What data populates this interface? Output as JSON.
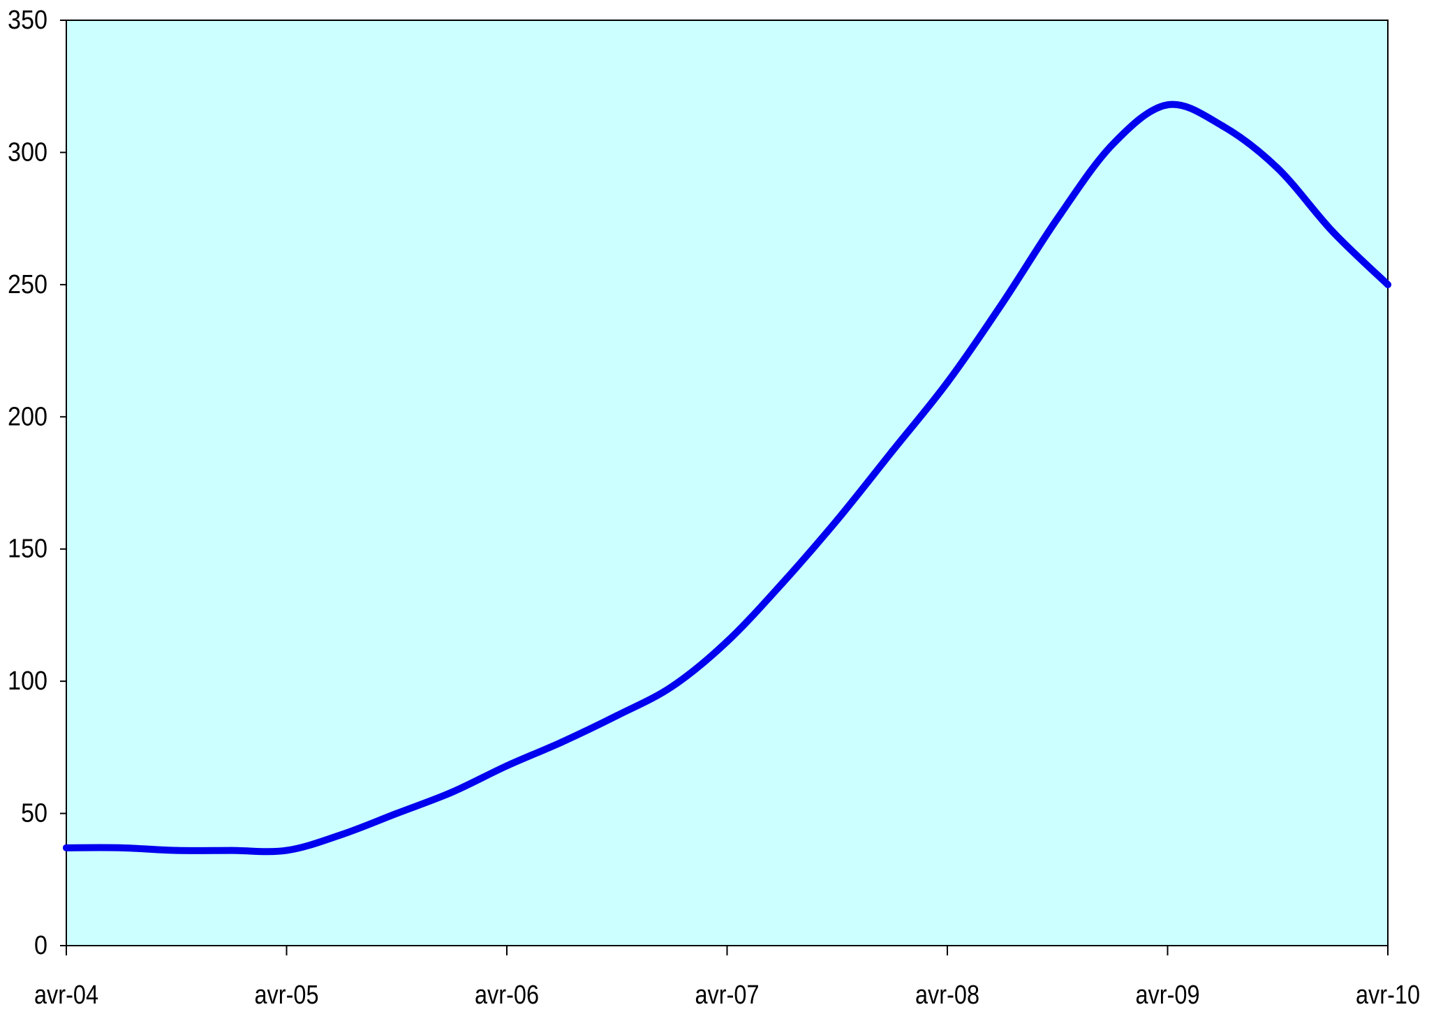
{
  "chart_data": {
    "type": "line",
    "title": "",
    "xlabel": "",
    "ylabel": "",
    "background_color": "#ccffff",
    "line_color": "#0000ee",
    "grid": false,
    "legend": "none",
    "ylim": [
      0,
      350
    ],
    "yticks": [
      "0",
      "50",
      "100",
      "150",
      "200",
      "250",
      "300",
      "350"
    ],
    "xticks": [
      "avr-04",
      "avr-05",
      "avr-06",
      "avr-07",
      "avr-08",
      "avr-09",
      "avr-10"
    ],
    "xlim": [
      "2004-04",
      "2010-04"
    ],
    "series": [
      {
        "x": [
          "2004-04",
          "2004-07",
          "2004-10",
          "2005-01",
          "2005-04",
          "2005-07",
          "2005-10",
          "2006-01",
          "2006-04",
          "2006-07",
          "2006-10",
          "2007-01",
          "2007-04",
          "2007-07",
          "2007-10",
          "2008-01",
          "2008-04",
          "2008-07",
          "2008-10",
          "2009-01",
          "2009-04",
          "2009-07",
          "2009-10",
          "2010-01",
          "2010-04"
        ],
        "values": [
          37,
          37,
          36,
          36,
          36,
          42,
          50,
          58,
          68,
          77,
          87,
          98,
          115,
          137,
          161,
          187,
          213,
          243,
          275,
          303,
          318,
          310,
          294,
          270,
          250
        ]
      }
    ]
  }
}
